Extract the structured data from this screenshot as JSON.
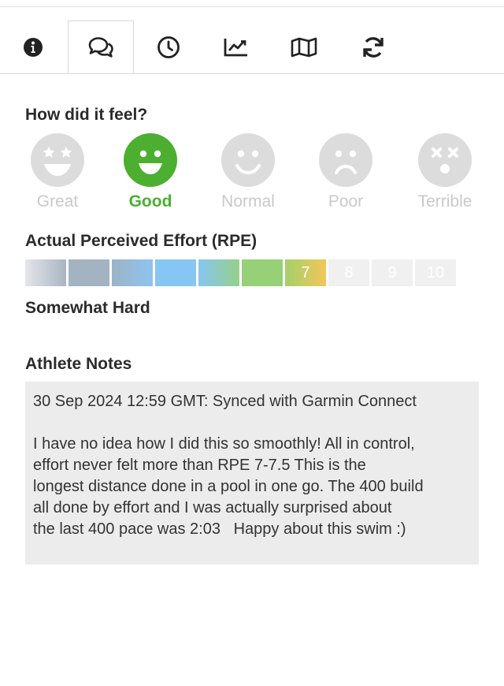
{
  "tabs": [
    {
      "key": "info",
      "icon": "info-icon"
    },
    {
      "key": "comments",
      "icon": "comments-icon",
      "active": true
    },
    {
      "key": "history",
      "icon": "clock-icon"
    },
    {
      "key": "analytics",
      "icon": "line-chart-icon"
    },
    {
      "key": "map",
      "icon": "map-icon"
    },
    {
      "key": "sync",
      "icon": "refresh-icon"
    }
  ],
  "feel": {
    "title": "How did it feel?",
    "options": [
      {
        "label": "Great",
        "icon": "star-eyes-face-icon"
      },
      {
        "label": "Good",
        "icon": "big-smile-face-icon",
        "selected": true
      },
      {
        "label": "Normal",
        "icon": "smile-face-icon"
      },
      {
        "label": "Poor",
        "icon": "frown-face-icon"
      },
      {
        "label": "Terrible",
        "icon": "dizzy-face-icon"
      }
    ],
    "selected_color": "#4caf2f",
    "inactive_color": "#dcdcdc"
  },
  "rpe": {
    "title": "Actual Perceived Effort (RPE)",
    "selected": 7,
    "labels": [
      "",
      "",
      "",
      "",
      "",
      "",
      "7",
      "8",
      "9",
      "10"
    ],
    "description": "Somewhat Hard"
  },
  "notes": {
    "title": "Athlete Notes",
    "header_line": "30 Sep 2024 12:59 GMT: Synced with Garmin Connect",
    "body_lines": [
      "I have no idea how I did this so smoothly! All in control,",
      "effort never felt more than RPE 7-7.5 This is the",
      "longest distance done in a pool in one go. The 400 build",
      "all done by effort and I was actually surprised about",
      "the last 400 pace was 2:03   Happy about this swim :)"
    ]
  }
}
